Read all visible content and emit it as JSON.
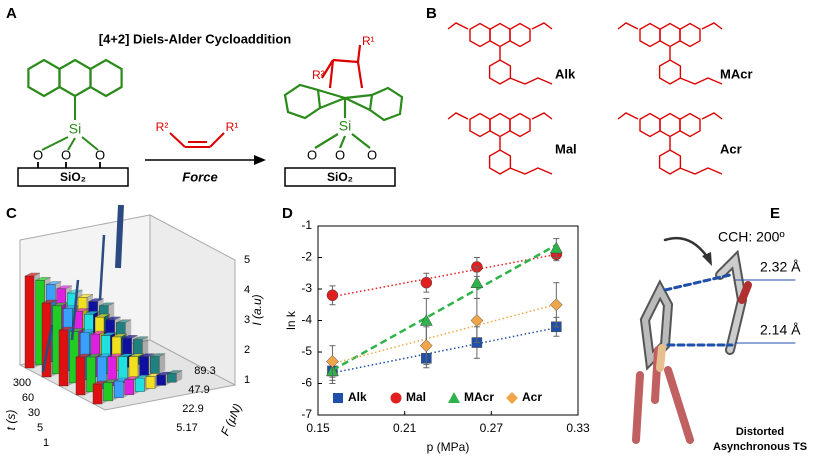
{
  "panels": {
    "A": {
      "label": "A",
      "title": "[4+2] Diels-Alder Cycloaddition",
      "si": "Si",
      "o": "O",
      "support": "SiO₂",
      "r1": "R¹",
      "r2": "R²",
      "arrow": "Force"
    },
    "B": {
      "label": "B",
      "names": [
        "Alk",
        "MAcr",
        "Mal",
        "Acr"
      ]
    },
    "C": {
      "label": "C",
      "t_label": "t (s)",
      "t_ticks": [
        "300",
        "60",
        "30",
        "5",
        "1"
      ],
      "f_label": "F (μN)",
      "f_ticks": [
        "89.3",
        "47.9",
        "22.9",
        "5.17"
      ],
      "i_label": "I (a.u)",
      "i_ticks": [
        "1",
        "2",
        "3",
        "4",
        "5"
      ]
    },
    "E": {
      "label": "E",
      "angle": "CCH: 200º",
      "d1": "2.32 Å",
      "d2": "2.14 Å",
      "caption1": "Distorted",
      "caption2": "Asynchronous TS"
    }
  },
  "chart_data": {
    "type": "scatter",
    "label": "D",
    "xlabel": "p (MPa)",
    "ylabel": "ln k",
    "xlim": [
      0.15,
      0.33
    ],
    "xticks": [
      0.15,
      0.21,
      0.27,
      0.33
    ],
    "ylim": [
      -7,
      -1
    ],
    "yticks": [
      -7,
      -6,
      -5,
      -4,
      -3,
      -2,
      -1
    ],
    "x": [
      0.16,
      0.225,
      0.26,
      0.315
    ],
    "series": [
      {
        "name": "Alk",
        "color": "#1f4fa8",
        "marker": "square",
        "values": [
          -5.6,
          -5.2,
          -4.7,
          -4.2
        ],
        "errors": [
          0.4,
          0.3,
          0.5,
          0.3
        ]
      },
      {
        "name": "Mal",
        "color": "#e02020",
        "marker": "circle",
        "values": [
          -3.2,
          -2.8,
          -2.3,
          -1.9
        ],
        "errors": [
          0.3,
          0.3,
          0.3,
          0.2
        ]
      },
      {
        "name": "MAcr",
        "color": "#2db34a",
        "marker": "triangle",
        "values": [
          -5.6,
          -4.0,
          -2.8,
          -1.7
        ],
        "errors": [
          0.3,
          0.7,
          0.5,
          0.3
        ]
      },
      {
        "name": "Acr",
        "color": "#f0a54a",
        "marker": "diamond",
        "values": [
          -5.3,
          -4.8,
          -4.0,
          -3.5
        ],
        "errors": [
          0.5,
          0.6,
          0.7,
          0.7
        ]
      }
    ]
  }
}
